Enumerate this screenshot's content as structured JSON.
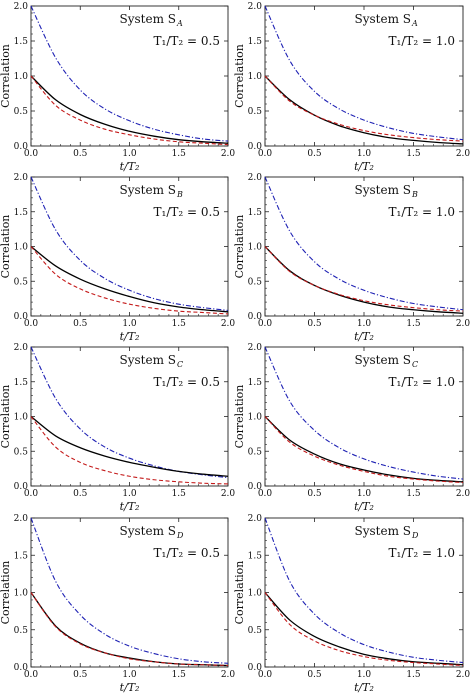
{
  "figure": {
    "xlabel": "t/T₂",
    "ylabel": "Correlation"
  },
  "chart_data": [
    {
      "type": "line",
      "system_text": "System S",
      "system_sub": "A",
      "ratio_text": "T₁/T₂ = 0.5",
      "xlim": [
        0,
        2
      ],
      "ylim": [
        0,
        2
      ],
      "x_ticks": [
        "0.0",
        "0.5",
        "1.0",
        "1.5",
        "2.0"
      ],
      "y_ticks": [
        "0.0",
        "0.5",
        "1.0",
        "1.5",
        "2.0"
      ],
      "grid": false,
      "x": [
        0,
        0.25,
        0.5,
        0.75,
        1.0,
        1.25,
        1.5,
        1.75,
        2.0
      ],
      "series": [
        {
          "color": "#1f22b4",
          "dash": "dashdot",
          "values": [
            2.0,
            1.26,
            0.8,
            0.53,
            0.36,
            0.24,
            0.16,
            0.1,
            0.07
          ]
        },
        {
          "color": "#000000",
          "dash": "solid",
          "values": [
            1.0,
            0.66,
            0.45,
            0.31,
            0.21,
            0.14,
            0.09,
            0.06,
            0.04
          ]
        },
        {
          "color": "#c41a1a",
          "dash": "dashed",
          "values": [
            1.0,
            0.58,
            0.37,
            0.24,
            0.16,
            0.1,
            0.06,
            0.04,
            0.02
          ]
        }
      ]
    },
    {
      "type": "line",
      "system_text": "System S",
      "system_sub": "A",
      "ratio_text": "T₁/T₂ = 1.0",
      "xlim": [
        0,
        2
      ],
      "ylim": [
        0,
        2
      ],
      "x_ticks": [
        "0.0",
        "0.5",
        "1.0",
        "1.5",
        "2.0"
      ],
      "y_ticks": [
        "0.0",
        "0.5",
        "1.0",
        "1.5",
        "2.0"
      ],
      "grid": false,
      "x": [
        0,
        0.25,
        0.5,
        0.75,
        1.0,
        1.25,
        1.5,
        1.75,
        2.0
      ],
      "series": [
        {
          "color": "#1f22b4",
          "dash": "dashdot",
          "values": [
            2.0,
            1.22,
            0.78,
            0.53,
            0.37,
            0.26,
            0.18,
            0.13,
            0.09
          ]
        },
        {
          "color": "#000000",
          "dash": "solid",
          "values": [
            1.0,
            0.66,
            0.44,
            0.29,
            0.19,
            0.12,
            0.08,
            0.05,
            0.03
          ]
        },
        {
          "color": "#c41a1a",
          "dash": "dashed",
          "values": [
            1.0,
            0.64,
            0.44,
            0.31,
            0.22,
            0.16,
            0.12,
            0.09,
            0.07
          ]
        }
      ]
    },
    {
      "type": "line",
      "system_text": "System S",
      "system_sub": "B",
      "ratio_text": "T₁/T₂ = 0.5",
      "xlim": [
        0,
        2
      ],
      "ylim": [
        0,
        2
      ],
      "x_ticks": [
        "0.0",
        "0.5",
        "1.0",
        "1.5",
        "2.0"
      ],
      "y_ticks": [
        "0.0",
        "0.5",
        "1.0",
        "1.5",
        "2.0"
      ],
      "grid": false,
      "x": [
        0,
        0.25,
        0.5,
        0.75,
        1.0,
        1.25,
        1.5,
        1.75,
        2.0
      ],
      "series": [
        {
          "color": "#1f22b4",
          "dash": "dashdot",
          "values": [
            2.0,
            1.24,
            0.8,
            0.54,
            0.37,
            0.25,
            0.17,
            0.12,
            0.08
          ]
        },
        {
          "color": "#000000",
          "dash": "solid",
          "values": [
            1.0,
            0.72,
            0.53,
            0.39,
            0.28,
            0.19,
            0.13,
            0.09,
            0.06
          ]
        },
        {
          "color": "#c41a1a",
          "dash": "dashed",
          "values": [
            1.0,
            0.6,
            0.39,
            0.26,
            0.17,
            0.11,
            0.07,
            0.05,
            0.03
          ]
        }
      ]
    },
    {
      "type": "line",
      "system_text": "System S",
      "system_sub": "B",
      "ratio_text": "T₁/T₂ = 1.0",
      "xlim": [
        0,
        2
      ],
      "ylim": [
        0,
        2
      ],
      "x_ticks": [
        "0.0",
        "0.5",
        "1.0",
        "1.5",
        "2.0"
      ],
      "y_ticks": [
        "0.0",
        "0.5",
        "1.0",
        "1.5",
        "2.0"
      ],
      "grid": false,
      "x": [
        0,
        0.25,
        0.5,
        0.75,
        1.0,
        1.25,
        1.5,
        1.75,
        2.0
      ],
      "series": [
        {
          "color": "#1f22b4",
          "dash": "dashdot",
          "values": [
            2.0,
            1.22,
            0.78,
            0.53,
            0.37,
            0.26,
            0.18,
            0.13,
            0.09
          ]
        },
        {
          "color": "#000000",
          "dash": "solid",
          "values": [
            1.0,
            0.65,
            0.44,
            0.3,
            0.2,
            0.13,
            0.09,
            0.06,
            0.04
          ]
        },
        {
          "color": "#c41a1a",
          "dash": "dashed",
          "values": [
            1.0,
            0.64,
            0.44,
            0.31,
            0.22,
            0.16,
            0.12,
            0.09,
            0.07
          ]
        }
      ]
    },
    {
      "type": "line",
      "system_text": "System S",
      "system_sub": "C",
      "ratio_text": "T₁/T₂ = 0.5",
      "xlim": [
        0,
        2
      ],
      "ylim": [
        0,
        2
      ],
      "x_ticks": [
        "0.0",
        "0.5",
        "1.0",
        "1.5",
        "2.0"
      ],
      "y_ticks": [
        "0.0",
        "0.5",
        "1.0",
        "1.5",
        "2.0"
      ],
      "grid": false,
      "x": [
        0,
        0.25,
        0.5,
        0.75,
        1.0,
        1.25,
        1.5,
        1.75,
        2.0
      ],
      "series": [
        {
          "color": "#1f22b4",
          "dash": "dashdot",
          "values": [
            2.0,
            1.26,
            0.82,
            0.56,
            0.4,
            0.29,
            0.21,
            0.16,
            0.12
          ]
        },
        {
          "color": "#000000",
          "dash": "solid",
          "values": [
            1.0,
            0.72,
            0.55,
            0.43,
            0.34,
            0.27,
            0.21,
            0.17,
            0.14
          ]
        },
        {
          "color": "#c41a1a",
          "dash": "dashed",
          "values": [
            1.0,
            0.56,
            0.34,
            0.22,
            0.14,
            0.09,
            0.06,
            0.04,
            0.03
          ]
        }
      ]
    },
    {
      "type": "line",
      "system_text": "System S",
      "system_sub": "C",
      "ratio_text": "T₁/T₂ = 1.0",
      "xlim": [
        0,
        2
      ],
      "ylim": [
        0,
        2
      ],
      "x_ticks": [
        "0.0",
        "0.5",
        "1.0",
        "1.5",
        "2.0"
      ],
      "y_ticks": [
        "0.0",
        "0.5",
        "1.0",
        "1.5",
        "2.0"
      ],
      "grid": false,
      "x": [
        0,
        0.25,
        0.5,
        0.75,
        1.0,
        1.25,
        1.5,
        1.75,
        2.0
      ],
      "series": [
        {
          "color": "#1f22b4",
          "dash": "dashdot",
          "values": [
            2.0,
            1.22,
            0.8,
            0.55,
            0.39,
            0.28,
            0.2,
            0.14,
            0.1
          ]
        },
        {
          "color": "#000000",
          "dash": "solid",
          "values": [
            1.0,
            0.66,
            0.46,
            0.32,
            0.23,
            0.16,
            0.11,
            0.08,
            0.06
          ]
        },
        {
          "color": "#c41a1a",
          "dash": "dashed",
          "values": [
            1.0,
            0.63,
            0.43,
            0.3,
            0.21,
            0.14,
            0.1,
            0.07,
            0.05
          ]
        }
      ]
    },
    {
      "type": "line",
      "system_text": "System S",
      "system_sub": "D",
      "ratio_text": "T₁/T₂ = 0.5",
      "xlim": [
        0,
        2
      ],
      "ylim": [
        0,
        2
      ],
      "x_ticks": [
        "0.0",
        "0.5",
        "1.0",
        "1.5",
        "2.0"
      ],
      "y_ticks": [
        "0.0",
        "0.5",
        "1.0",
        "1.5",
        "2.0"
      ],
      "grid": false,
      "x": [
        0,
        0.25,
        0.5,
        0.75,
        1.0,
        1.25,
        1.5,
        1.75,
        2.0
      ],
      "series": [
        {
          "color": "#1f22b4",
          "dash": "dashdot",
          "values": [
            2.0,
            1.15,
            0.7,
            0.44,
            0.28,
            0.18,
            0.11,
            0.07,
            0.05
          ]
        },
        {
          "color": "#000000",
          "dash": "solid",
          "values": [
            1.0,
            0.55,
            0.32,
            0.19,
            0.12,
            0.07,
            0.04,
            0.03,
            0.02
          ]
        },
        {
          "color": "#c41a1a",
          "dash": "dashed",
          "values": [
            1.0,
            0.54,
            0.31,
            0.19,
            0.11,
            0.07,
            0.04,
            0.03,
            0.02
          ]
        }
      ]
    },
    {
      "type": "line",
      "system_text": "System S",
      "system_sub": "D",
      "ratio_text": "T₁/T₂ = 1.0",
      "xlim": [
        0,
        2
      ],
      "ylim": [
        0,
        2
      ],
      "x_ticks": [
        "0.0",
        "0.5",
        "1.0",
        "1.5",
        "2.0"
      ],
      "y_ticks": [
        "0.0",
        "0.5",
        "1.0",
        "1.5",
        "2.0"
      ],
      "grid": false,
      "x": [
        0,
        0.25,
        0.5,
        0.75,
        1.0,
        1.25,
        1.5,
        1.75,
        2.0
      ],
      "series": [
        {
          "color": "#1f22b4",
          "dash": "dashdot",
          "values": [
            2.0,
            1.15,
            0.71,
            0.46,
            0.3,
            0.2,
            0.13,
            0.09,
            0.06
          ]
        },
        {
          "color": "#000000",
          "dash": "solid",
          "values": [
            1.0,
            0.63,
            0.41,
            0.27,
            0.17,
            0.11,
            0.07,
            0.05,
            0.03
          ]
        },
        {
          "color": "#c41a1a",
          "dash": "dashed",
          "values": [
            1.0,
            0.57,
            0.35,
            0.22,
            0.14,
            0.09,
            0.06,
            0.04,
            0.02
          ]
        }
      ]
    }
  ]
}
